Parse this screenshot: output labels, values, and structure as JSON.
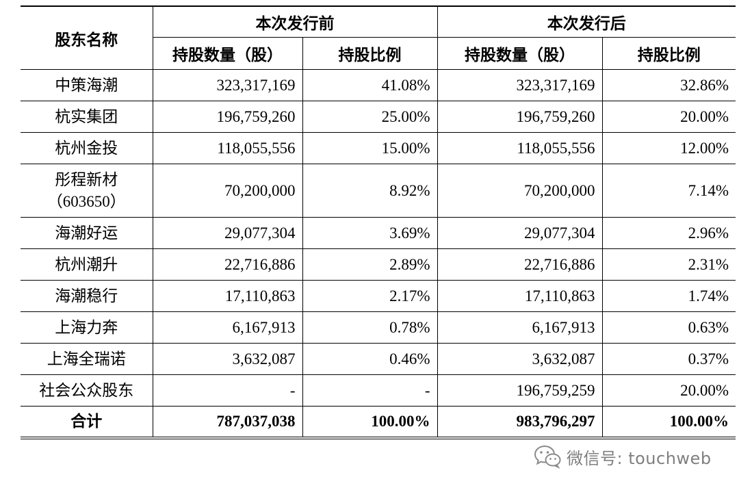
{
  "table": {
    "header": {
      "name_col": "股东名称",
      "groups": [
        "本次发行前",
        "本次发行后"
      ],
      "subheaders": [
        "持股数量（股）",
        "持股比例",
        "持股数量（股）",
        "持股比例"
      ]
    },
    "rows": [
      {
        "name": "中策海潮",
        "before_shares": "323,317,169",
        "before_ratio": "41.08%",
        "after_shares": "323,317,169",
        "after_ratio": "32.86%"
      },
      {
        "name": "杭实集团",
        "before_shares": "196,759,260",
        "before_ratio": "25.00%",
        "after_shares": "196,759,260",
        "after_ratio": "20.00%"
      },
      {
        "name": "杭州金投",
        "before_shares": "118,055,556",
        "before_ratio": "15.00%",
        "after_shares": "118,055,556",
        "after_ratio": "12.00%"
      },
      {
        "name": "彤程新材\n（603650）",
        "before_shares": "70,200,000",
        "before_ratio": "8.92%",
        "after_shares": "70,200,000",
        "after_ratio": "7.14%"
      },
      {
        "name": "海潮好运",
        "before_shares": "29,077,304",
        "before_ratio": "3.69%",
        "after_shares": "29,077,304",
        "after_ratio": "2.96%"
      },
      {
        "name": "杭州潮升",
        "before_shares": "22,716,886",
        "before_ratio": "2.89%",
        "after_shares": "22,716,886",
        "after_ratio": "2.31%"
      },
      {
        "name": "海潮稳行",
        "before_shares": "17,110,863",
        "before_ratio": "2.17%",
        "after_shares": "17,110,863",
        "after_ratio": "1.74%"
      },
      {
        "name": "上海力奔",
        "before_shares": "6,167,913",
        "before_ratio": "0.78%",
        "after_shares": "6,167,913",
        "after_ratio": "0.63%"
      },
      {
        "name": "上海全瑞诺",
        "before_shares": "3,632,087",
        "before_ratio": "0.46%",
        "after_shares": "3,632,087",
        "after_ratio": "0.37%"
      },
      {
        "name": "社会公众股东",
        "before_shares": "-",
        "before_ratio": "-",
        "after_shares": "196,759,259",
        "after_ratio": "20.00%"
      }
    ],
    "total": {
      "name": "合计",
      "before_shares": "787,037,038",
      "before_ratio": "100.00%",
      "after_shares": "983,796,297",
      "after_ratio": "100.00%"
    }
  },
  "watermark": {
    "icon": "wechat-icon",
    "text": "微信号: touchweb",
    "color": "#7f7f7f"
  }
}
